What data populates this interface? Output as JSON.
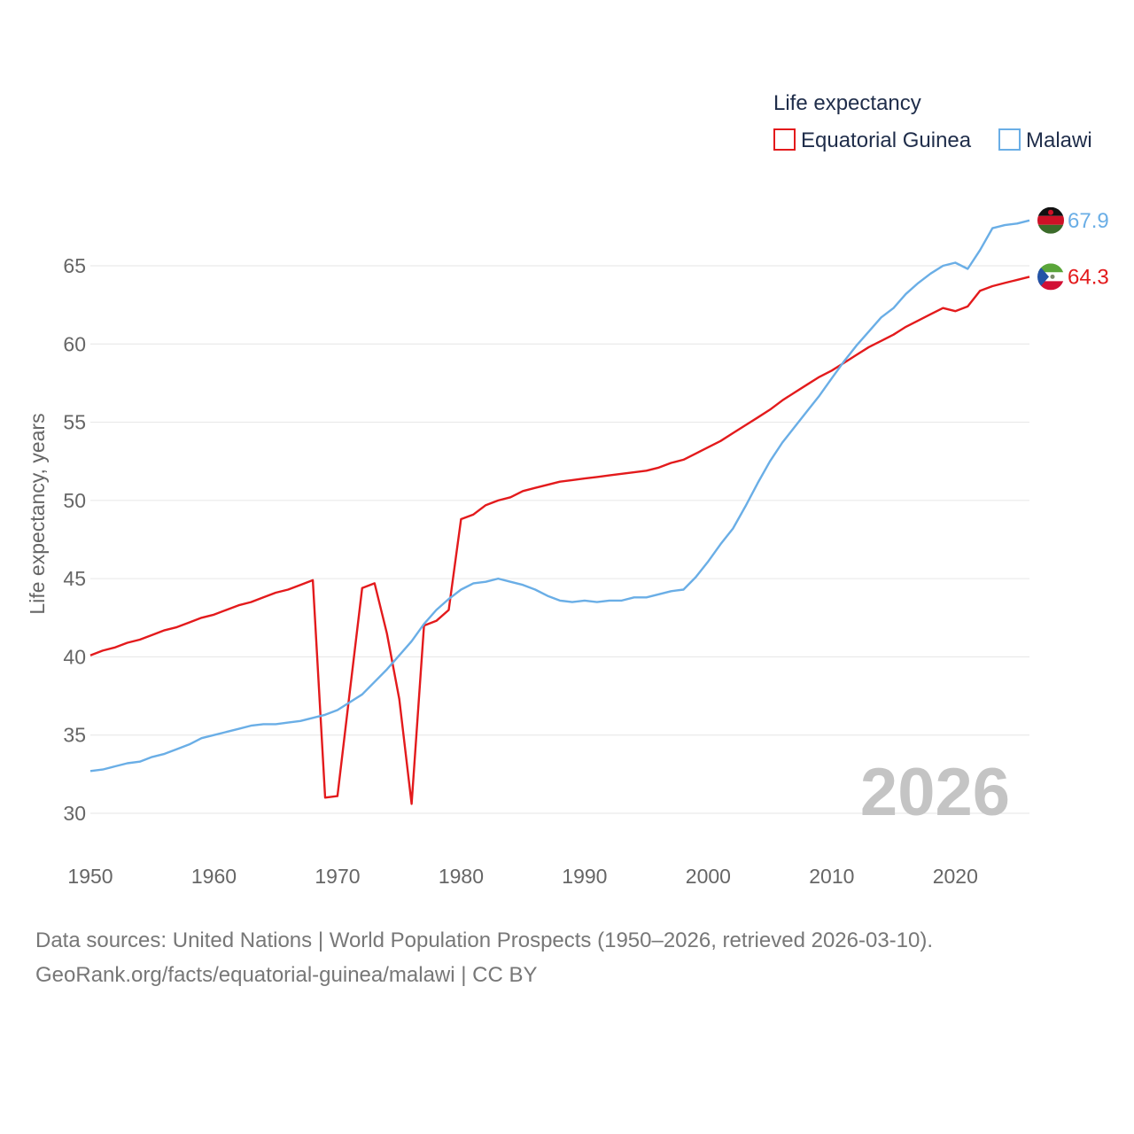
{
  "chart_data": {
    "type": "line",
    "legend_title": "Life expectancy",
    "ylabel": "Life expectancy, years",
    "xlabel": "",
    "xlim": [
      1950,
      2026
    ],
    "ylim": [
      28,
      70
    ],
    "x_ticks": [
      1950,
      1960,
      1970,
      1980,
      1990,
      2000,
      2010,
      2020
    ],
    "y_ticks": [
      30,
      35,
      40,
      45,
      50,
      55,
      60,
      65
    ],
    "watermark_year": "2026",
    "legend_position": "top-right",
    "x": [
      1950,
      1951,
      1952,
      1953,
      1954,
      1955,
      1956,
      1957,
      1958,
      1959,
      1960,
      1961,
      1962,
      1963,
      1964,
      1965,
      1966,
      1967,
      1968,
      1969,
      1970,
      1971,
      1972,
      1973,
      1974,
      1975,
      1976,
      1977,
      1978,
      1979,
      1980,
      1981,
      1982,
      1983,
      1984,
      1985,
      1986,
      1987,
      1988,
      1989,
      1990,
      1991,
      1992,
      1993,
      1994,
      1995,
      1996,
      1997,
      1998,
      1999,
      2000,
      2001,
      2002,
      2003,
      2004,
      2005,
      2006,
      2007,
      2008,
      2009,
      2010,
      2011,
      2012,
      2013,
      2014,
      2015,
      2016,
      2017,
      2018,
      2019,
      2020,
      2021,
      2022,
      2023,
      2024,
      2025,
      2026
    ],
    "series": [
      {
        "name": "Equatorial Guinea",
        "color": "#e31a1c",
        "end_label": "64.3",
        "flag": "equatorial-guinea-flag-icon",
        "values": [
          40.1,
          40.4,
          40.6,
          40.9,
          41.1,
          41.4,
          41.7,
          41.9,
          42.2,
          42.5,
          42.7,
          43.0,
          43.3,
          43.5,
          43.8,
          44.1,
          44.3,
          44.6,
          44.9,
          31.0,
          31.1,
          37.8,
          44.4,
          44.7,
          41.5,
          37.3,
          30.6,
          42.0,
          42.3,
          43.0,
          48.8,
          49.1,
          49.7,
          50.0,
          50.2,
          50.6,
          50.8,
          51.0,
          51.2,
          51.3,
          51.4,
          51.5,
          51.6,
          51.7,
          51.8,
          51.9,
          52.1,
          52.4,
          52.6,
          53.0,
          53.4,
          53.8,
          54.3,
          54.8,
          55.3,
          55.8,
          56.4,
          56.9,
          57.4,
          57.9,
          58.3,
          58.8,
          59.3,
          59.8,
          60.2,
          60.6,
          61.1,
          61.5,
          61.9,
          62.3,
          62.1,
          62.4,
          63.4,
          63.7,
          63.9,
          64.1,
          64.3
        ]
      },
      {
        "name": "Malawi",
        "color": "#6aaee6",
        "end_label": "67.9",
        "flag": "malawi-flag-icon",
        "values": [
          32.7,
          32.8,
          33.0,
          33.2,
          33.3,
          33.6,
          33.8,
          34.1,
          34.4,
          34.8,
          35.0,
          35.2,
          35.4,
          35.6,
          35.7,
          35.7,
          35.8,
          35.9,
          36.1,
          36.3,
          36.6,
          37.1,
          37.6,
          38.4,
          39.2,
          40.1,
          41.0,
          42.1,
          43.0,
          43.7,
          44.3,
          44.7,
          44.8,
          45.0,
          44.8,
          44.6,
          44.3,
          43.9,
          43.6,
          43.5,
          43.6,
          43.5,
          43.6,
          43.6,
          43.8,
          43.8,
          44.0,
          44.2,
          44.3,
          45.1,
          46.1,
          47.2,
          48.2,
          49.6,
          51.1,
          52.5,
          53.7,
          54.7,
          55.7,
          56.7,
          57.8,
          58.9,
          59.9,
          60.8,
          61.7,
          62.3,
          63.2,
          63.9,
          64.5,
          65.0,
          65.2,
          64.8,
          66.0,
          67.4,
          67.6,
          67.7,
          67.9
        ]
      }
    ]
  },
  "footer": {
    "sources": "Data sources: United Nations | World Population Prospects (1950–2026, retrieved 2026-03-10).",
    "link": "GeoRank.org/facts/equatorial-guinea/malawi | CC BY"
  }
}
